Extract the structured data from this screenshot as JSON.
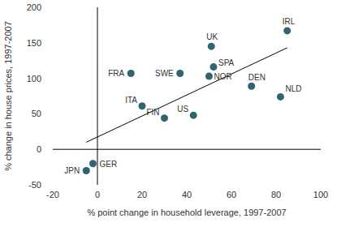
{
  "chart_data": {
    "type": "scatter",
    "x_label": "% point change in household leverage, 1997-2007",
    "y_label": "% change in house prices, 1997-2007",
    "labels": [
      "GER",
      "JPN",
      "FRA",
      "ITA",
      "FIN",
      "SWE",
      "US",
      "UK",
      "SPA",
      "NOR",
      "DEN",
      "NLD",
      "IRL"
    ],
    "x": [
      -2,
      -5,
      15,
      20,
      30,
      37,
      43,
      51,
      52,
      50,
      69,
      82,
      85
    ],
    "values": [
      -20,
      -30,
      107,
      61,
      44,
      107,
      48,
      145,
      116,
      103,
      89,
      74,
      167
    ],
    "color": "#2f6470",
    "marker": "circle",
    "trend": {
      "x": [
        -5,
        85
      ],
      "values": [
        10,
        143
      ]
    },
    "xlim": [
      -20,
      100
    ],
    "xticks": [
      -20,
      0,
      20,
      40,
      60,
      80,
      100
    ],
    "ylim": [
      -50,
      200
    ],
    "yticks": [
      -50,
      0,
      50,
      100,
      150,
      200
    ],
    "grid": false
  }
}
